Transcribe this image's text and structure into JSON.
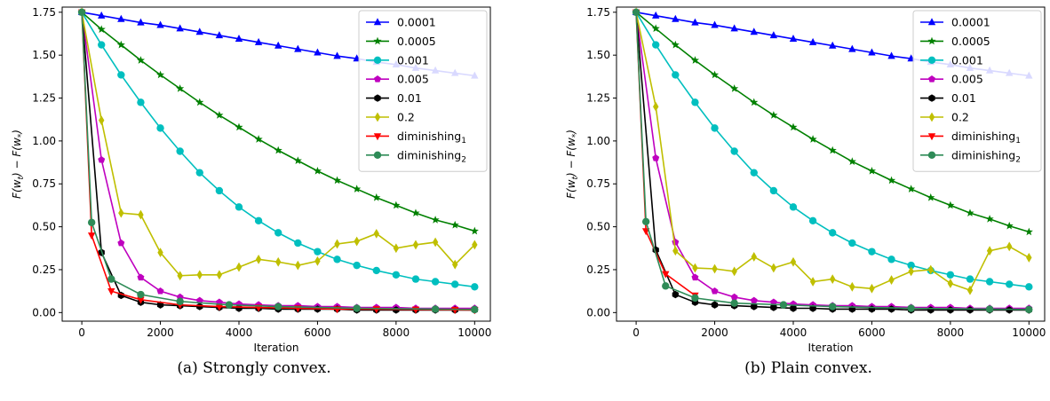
{
  "charts": [
    {
      "caption": "(a) Strongly convex.",
      "xlabel": "Iteration",
      "ylabel": "F(w_t) − F(w_*)",
      "xlim": [
        -500,
        10400
      ],
      "ylim": [
        -0.05,
        1.78
      ],
      "xticks": [
        0,
        2000,
        4000,
        6000,
        8000,
        10000
      ],
      "yticks": [
        0.0,
        0.25,
        0.5,
        0.75,
        1.0,
        1.25,
        1.5,
        1.75
      ],
      "legend_position": "top-right",
      "grid": false
    },
    {
      "caption": "(b) Plain convex.",
      "xlabel": "Iteration",
      "ylabel": "F(w_t) − F(w_*)",
      "xlim": [
        -500,
        10400
      ],
      "ylim": [
        -0.05,
        1.78
      ],
      "xticks": [
        0,
        2000,
        4000,
        6000,
        8000,
        10000
      ],
      "yticks": [
        0.0,
        0.25,
        0.5,
        0.75,
        1.0,
        1.25,
        1.5,
        1.75
      ],
      "legend_position": "top-right",
      "grid": false
    }
  ],
  "chart_data": [
    {
      "type": "line",
      "title": "",
      "xlabel": "Iteration",
      "ylabel": "F(w_t) − F(w_*)",
      "series": [
        {
          "name": "0.0001",
          "sub": "",
          "color": "#0000ff",
          "marker": "triangle-up",
          "x": [
            0,
            500,
            1000,
            1500,
            2000,
            2500,
            3000,
            3500,
            4000,
            4500,
            5000,
            5500,
            6000,
            6500,
            7000,
            7500,
            8000,
            8500,
            9000,
            9500,
            10000
          ],
          "y": [
            1.75,
            1.73,
            1.71,
            1.69,
            1.675,
            1.655,
            1.635,
            1.615,
            1.595,
            1.575,
            1.555,
            1.535,
            1.515,
            1.495,
            1.48,
            1.46,
            1.445,
            1.425,
            1.41,
            1.395,
            1.38
          ]
        },
        {
          "name": "0.0005",
          "sub": "",
          "color": "#008000",
          "marker": "star",
          "x": [
            0,
            500,
            1000,
            1500,
            2000,
            2500,
            3000,
            3500,
            4000,
            4500,
            5000,
            5500,
            6000,
            6500,
            7000,
            7500,
            8000,
            8500,
            9000,
            9500,
            10000
          ],
          "y": [
            1.75,
            1.65,
            1.56,
            1.47,
            1.385,
            1.305,
            1.225,
            1.15,
            1.08,
            1.01,
            0.945,
            0.885,
            0.825,
            0.77,
            0.72,
            0.67,
            0.625,
            0.58,
            0.54,
            0.51,
            0.475
          ]
        },
        {
          "name": "0.001",
          "sub": "",
          "color": "#00bfbf",
          "marker": "circle",
          "x": [
            0,
            500,
            1000,
            1500,
            2000,
            2500,
            3000,
            3500,
            4000,
            4500,
            5000,
            5500,
            6000,
            6500,
            7000,
            7500,
            8000,
            8500,
            9000,
            9500,
            10000
          ],
          "y": [
            1.75,
            1.56,
            1.385,
            1.225,
            1.075,
            0.94,
            0.815,
            0.71,
            0.615,
            0.535,
            0.465,
            0.405,
            0.355,
            0.31,
            0.275,
            0.245,
            0.22,
            0.195,
            0.18,
            0.165,
            0.15
          ]
        },
        {
          "name": "0.005",
          "sub": "",
          "color": "#bf00bf",
          "marker": "pentagon",
          "x": [
            0,
            500,
            1000,
            1500,
            2000,
            2500,
            3000,
            3500,
            4000,
            4500,
            5000,
            5500,
            6000,
            6500,
            7000,
            7500,
            8000,
            8500,
            9000,
            9500,
            10000
          ],
          "y": [
            1.75,
            0.89,
            0.405,
            0.205,
            0.125,
            0.09,
            0.07,
            0.06,
            0.05,
            0.045,
            0.04,
            0.04,
            0.035,
            0.035,
            0.03,
            0.03,
            0.03,
            0.025,
            0.025,
            0.025,
            0.025
          ]
        },
        {
          "name": "0.01",
          "sub": "",
          "color": "#000000",
          "marker": "hexagon",
          "x": [
            0,
            500,
            1000,
            1500,
            2000,
            2500,
            3000,
            3500,
            4000,
            4500,
            5000,
            5500,
            6000,
            6500,
            7000,
            7500,
            8000,
            8500,
            9000,
            9500,
            10000
          ],
          "y": [
            1.75,
            0.35,
            0.1,
            0.06,
            0.045,
            0.04,
            0.035,
            0.03,
            0.025,
            0.025,
            0.02,
            0.02,
            0.02,
            0.02,
            0.015,
            0.015,
            0.015,
            0.015,
            0.015,
            0.015,
            0.015
          ]
        },
        {
          "name": "0.2",
          "sub": "",
          "color": "#bfbf00",
          "marker": "diamond",
          "x": [
            0,
            500,
            1000,
            1500,
            2000,
            2500,
            3000,
            3500,
            4000,
            4500,
            5000,
            5500,
            6000,
            6500,
            7000,
            7500,
            8000,
            8500,
            9000,
            9500,
            10000
          ],
          "y": [
            1.75,
            1.12,
            0.58,
            0.57,
            0.35,
            0.215,
            0.22,
            0.22,
            0.265,
            0.31,
            0.295,
            0.275,
            0.3,
            0.4,
            0.415,
            0.46,
            0.375,
            0.395,
            0.41,
            0.28,
            0.395
          ]
        },
        {
          "name": "diminishing",
          "sub": "1",
          "color": "#ff0000",
          "marker": "triangle-down",
          "x": [
            0,
            250,
            750,
            1500,
            2500,
            3500,
            4500,
            5500,
            6500,
            7500,
            8500,
            9500,
            10000
          ],
          "y": [
            1.75,
            0.45,
            0.125,
            0.075,
            0.045,
            0.035,
            0.03,
            0.025,
            0.02,
            0.02,
            0.018,
            0.016,
            0.015
          ]
        },
        {
          "name": "diminishing",
          "sub": "2",
          "color": "#2e8b57",
          "marker": "circle",
          "x": [
            0,
            250,
            750,
            1500,
            2500,
            3750,
            5000,
            7000,
            9000,
            10000
          ],
          "y": [
            1.75,
            0.525,
            0.195,
            0.105,
            0.065,
            0.045,
            0.035,
            0.025,
            0.02,
            0.018
          ]
        }
      ]
    },
    {
      "type": "line",
      "title": "",
      "xlabel": "Iteration",
      "ylabel": "F(w_t) − F(w_*)",
      "series": [
        {
          "name": "0.0001",
          "sub": "",
          "color": "#0000ff",
          "marker": "triangle-up",
          "x": [
            0,
            500,
            1000,
            1500,
            2000,
            2500,
            3000,
            3500,
            4000,
            4500,
            5000,
            5500,
            6000,
            6500,
            7000,
            7500,
            8000,
            8500,
            9000,
            9500,
            10000
          ],
          "y": [
            1.75,
            1.73,
            1.71,
            1.69,
            1.675,
            1.655,
            1.635,
            1.615,
            1.595,
            1.575,
            1.555,
            1.535,
            1.515,
            1.495,
            1.48,
            1.46,
            1.445,
            1.425,
            1.41,
            1.395,
            1.38
          ]
        },
        {
          "name": "0.0005",
          "sub": "",
          "color": "#008000",
          "marker": "star",
          "x": [
            0,
            500,
            1000,
            1500,
            2000,
            2500,
            3000,
            3500,
            4000,
            4500,
            5000,
            5500,
            6000,
            6500,
            7000,
            7500,
            8000,
            8500,
            9000,
            9500,
            10000
          ],
          "y": [
            1.75,
            1.655,
            1.56,
            1.47,
            1.385,
            1.305,
            1.225,
            1.15,
            1.08,
            1.01,
            0.945,
            0.88,
            0.825,
            0.77,
            0.72,
            0.67,
            0.625,
            0.58,
            0.545,
            0.505,
            0.47
          ]
        },
        {
          "name": "0.001",
          "sub": "",
          "color": "#00bfbf",
          "marker": "circle",
          "x": [
            0,
            500,
            1000,
            1500,
            2000,
            2500,
            3000,
            3500,
            4000,
            4500,
            5000,
            5500,
            6000,
            6500,
            7000,
            7500,
            8000,
            8500,
            9000,
            9500,
            10000
          ],
          "y": [
            1.75,
            1.56,
            1.385,
            1.225,
            1.075,
            0.94,
            0.815,
            0.71,
            0.615,
            0.535,
            0.465,
            0.405,
            0.355,
            0.31,
            0.275,
            0.245,
            0.22,
            0.195,
            0.18,
            0.165,
            0.15
          ]
        },
        {
          "name": "0.005",
          "sub": "",
          "color": "#bf00bf",
          "marker": "pentagon",
          "x": [
            0,
            500,
            1000,
            1500,
            2000,
            2500,
            3000,
            3500,
            4000,
            4500,
            5000,
            5500,
            6000,
            6500,
            7000,
            7500,
            8000,
            8500,
            9000,
            9500,
            10000
          ],
          "y": [
            1.75,
            0.9,
            0.41,
            0.205,
            0.125,
            0.09,
            0.07,
            0.06,
            0.05,
            0.045,
            0.04,
            0.04,
            0.035,
            0.035,
            0.03,
            0.03,
            0.03,
            0.025,
            0.025,
            0.025,
            0.025
          ]
        },
        {
          "name": "0.01",
          "sub": "",
          "color": "#000000",
          "marker": "hexagon",
          "x": [
            0,
            500,
            1000,
            1500,
            2000,
            2500,
            3000,
            3500,
            4000,
            4500,
            5000,
            5500,
            6000,
            6500,
            7000,
            7500,
            8000,
            8500,
            9000,
            9500,
            10000
          ],
          "y": [
            1.75,
            0.365,
            0.105,
            0.06,
            0.045,
            0.04,
            0.035,
            0.03,
            0.025,
            0.025,
            0.02,
            0.02,
            0.02,
            0.02,
            0.015,
            0.015,
            0.015,
            0.015,
            0.015,
            0.015,
            0.015
          ]
        },
        {
          "name": "0.2",
          "sub": "",
          "color": "#bfbf00",
          "marker": "diamond",
          "x": [
            0,
            500,
            1000,
            1500,
            2000,
            2500,
            3000,
            3500,
            4000,
            4500,
            5000,
            5500,
            6000,
            6500,
            7000,
            7500,
            8000,
            8500,
            9000,
            9500,
            10000
          ],
          "y": [
            1.75,
            1.2,
            0.36,
            0.26,
            0.255,
            0.24,
            0.325,
            0.26,
            0.295,
            0.18,
            0.195,
            0.15,
            0.14,
            0.19,
            0.24,
            0.25,
            0.17,
            0.13,
            0.36,
            0.385,
            0.32
          ]
        },
        {
          "name": "diminishing",
          "sub": "1",
          "color": "#ff0000",
          "marker": "triangle-down",
          "x": [
            0,
            250,
            750,
            1500
          ],
          "y": [
            1.75,
            0.475,
            0.225,
            0.1
          ]
        },
        {
          "name": "diminishing",
          "sub": "2",
          "color": "#2e8b57",
          "marker": "circle",
          "x": [
            0,
            250,
            750,
            1500,
            2500,
            3750,
            5000,
            7000,
            9000,
            10000
          ],
          "y": [
            1.75,
            0.53,
            0.155,
            0.085,
            0.055,
            0.045,
            0.035,
            0.025,
            0.02,
            0.018
          ]
        }
      ]
    }
  ]
}
